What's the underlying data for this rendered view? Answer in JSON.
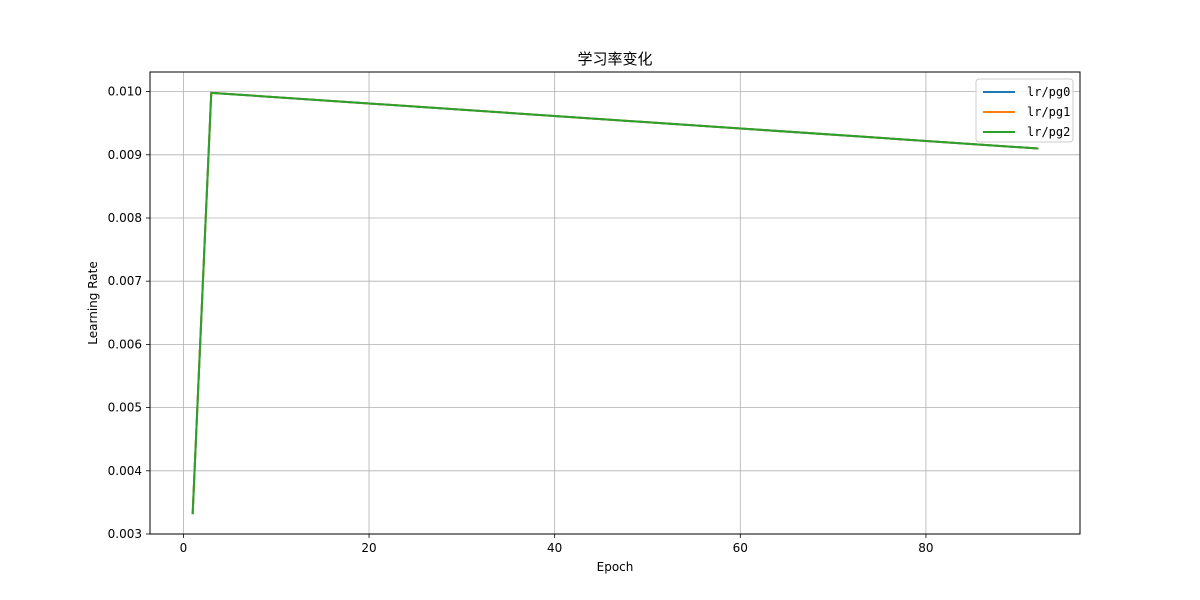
{
  "chart_data": {
    "type": "line",
    "title": "学习率变化",
    "xlabel": "Epoch",
    "ylabel": "Learning Rate",
    "xlim": [
      -3.6,
      96.6
    ],
    "ylim": [
      0.003,
      0.01031
    ],
    "xticks": [
      0,
      20,
      40,
      60,
      80
    ],
    "xtick_labels": [
      "0",
      "20",
      "40",
      "60",
      "80"
    ],
    "yticks": [
      0.003,
      0.004,
      0.005,
      0.006,
      0.007,
      0.008,
      0.009,
      0.01
    ],
    "ytick_labels": [
      "0.003",
      "0.004",
      "0.005",
      "0.006",
      "0.007",
      "0.008",
      "0.009",
      "0.010"
    ],
    "grid": true,
    "legend_position": "top-right",
    "series": [
      {
        "name": "lr/pg0",
        "color": "#1f77b4",
        "x": [
          1,
          3,
          92
        ],
        "y": [
          0.00333,
          0.00998,
          0.0091
        ]
      },
      {
        "name": "lr/pg1",
        "color": "#ff7f0e",
        "x": [
          1,
          3,
          92
        ],
        "y": [
          0.00333,
          0.00998,
          0.0091
        ]
      },
      {
        "name": "lr/pg2",
        "color": "#2ca02c",
        "x": [
          1,
          3,
          92
        ],
        "y": [
          0.00333,
          0.00998,
          0.0091
        ]
      }
    ]
  }
}
